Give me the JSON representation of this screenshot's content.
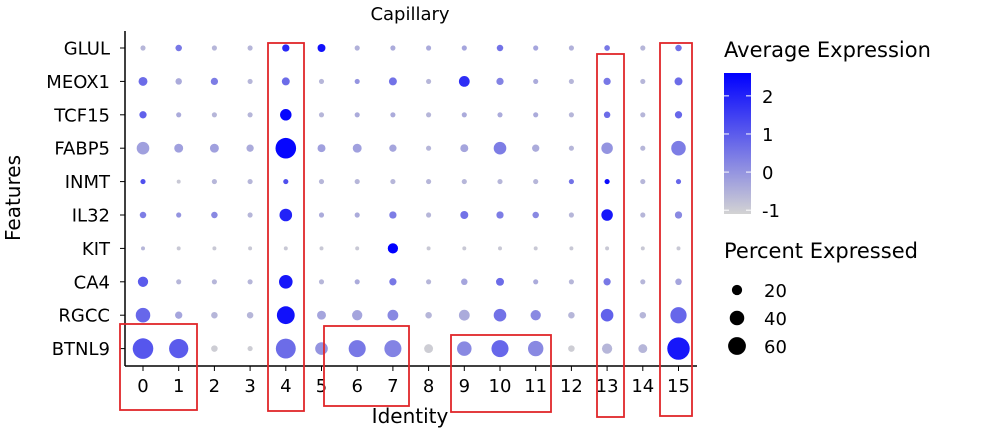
{
  "chart_data": {
    "type": "dotplot",
    "title": "Capillary",
    "xlabel": "Identity",
    "ylabel": "Features",
    "categories": [
      "0",
      "1",
      "2",
      "3",
      "4",
      "5",
      "6",
      "7",
      "8",
      "9",
      "10",
      "11",
      "12",
      "13",
      "14",
      "15"
    ],
    "features": [
      "GLUL",
      "MEOX1",
      "TCF15",
      "FABP5",
      "INMT",
      "IL32",
      "KIT",
      "CA4",
      "RGCC",
      "BTNL9"
    ],
    "avg_expression": [
      [
        -0.6,
        0.5,
        -0.6,
        -0.6,
        1.9,
        2.3,
        -0.5,
        -0.4,
        -0.4,
        -0.3,
        0.6,
        -0.3,
        -0.5,
        0.5,
        -0.6,
        0.6
      ],
      [
        0.7,
        -0.4,
        0.4,
        -0.6,
        0.7,
        -0.6,
        0.0,
        0.6,
        -0.6,
        1.8,
        0.3,
        -0.4,
        -0.6,
        0.5,
        -0.6,
        0.7
      ],
      [
        0.9,
        -0.4,
        -0.6,
        -0.6,
        2.5,
        -0.6,
        -0.4,
        -0.4,
        -0.6,
        -0.4,
        -0.4,
        -0.4,
        -0.6,
        0.7,
        -0.6,
        0.8
      ],
      [
        -0.2,
        -0.2,
        -0.2,
        -0.4,
        2.5,
        -0.2,
        -0.2,
        -0.3,
        -0.6,
        -0.3,
        0.4,
        -0.4,
        -0.6,
        0.0,
        -0.6,
        0.4
      ],
      [
        1.2,
        -0.9,
        -0.6,
        -0.6,
        1.2,
        -0.6,
        -0.6,
        -0.6,
        -0.6,
        -0.6,
        -0.6,
        -0.6,
        0.6,
        2.4,
        -0.6,
        0.8
      ],
      [
        0.4,
        0.0,
        0.2,
        -0.6,
        2.0,
        -0.4,
        -0.4,
        0.4,
        -0.6,
        0.6,
        0.4,
        0.2,
        -0.6,
        2.2,
        -0.6,
        0.2
      ],
      [
        -0.6,
        -0.9,
        -0.9,
        -0.9,
        -0.9,
        -0.9,
        -0.9,
        2.6,
        -0.9,
        -0.9,
        -0.9,
        -0.9,
        -0.9,
        -0.9,
        -0.9,
        -0.9
      ],
      [
        1.0,
        -0.6,
        -0.6,
        -0.6,
        2.2,
        -0.6,
        -0.4,
        0.5,
        -0.6,
        -0.3,
        0.7,
        -0.4,
        -0.6,
        0.5,
        -0.6,
        -0.3
      ],
      [
        0.8,
        -0.3,
        -0.6,
        -0.6,
        2.3,
        -0.3,
        -0.3,
        0.2,
        -0.6,
        -0.4,
        0.6,
        0.2,
        -0.6,
        0.9,
        -0.6,
        0.8
      ],
      [
        1.1,
        1.0,
        -1.0,
        -1.0,
        0.7,
        0.0,
        0.5,
        0.3,
        -1.0,
        0.2,
        0.8,
        0.2,
        -1.0,
        -0.6,
        -0.6,
        2.2
      ]
    ],
    "pct_expressed": [
      [
        5,
        8,
        5,
        5,
        10,
        12,
        5,
        5,
        5,
        5,
        8,
        5,
        5,
        6,
        5,
        8
      ],
      [
        15,
        8,
        10,
        5,
        12,
        5,
        5,
        12,
        5,
        22,
        10,
        5,
        5,
        10,
        5,
        12
      ],
      [
        10,
        5,
        5,
        5,
        25,
        5,
        5,
        5,
        5,
        5,
        5,
        5,
        5,
        8,
        5,
        10
      ],
      [
        30,
        15,
        15,
        10,
        80,
        12,
        15,
        10,
        5,
        12,
        30,
        10,
        5,
        25,
        5,
        40
      ],
      [
        5,
        3,
        5,
        5,
        5,
        5,
        5,
        5,
        5,
        5,
        5,
        5,
        5,
        5,
        5,
        5
      ],
      [
        8,
        5,
        8,
        5,
        30,
        5,
        5,
        10,
        5,
        12,
        10,
        8,
        5,
        25,
        5,
        10
      ],
      [
        3,
        3,
        3,
        3,
        3,
        3,
        3,
        20,
        3,
        3,
        3,
        3,
        3,
        3,
        3,
        3
      ],
      [
        20,
        5,
        5,
        5,
        35,
        5,
        5,
        10,
        5,
        8,
        12,
        5,
        5,
        10,
        5,
        8
      ],
      [
        40,
        10,
        8,
        8,
        60,
        15,
        20,
        22,
        8,
        22,
        30,
        20,
        8,
        30,
        8,
        50
      ],
      [
        80,
        70,
        8,
        5,
        75,
        30,
        55,
        55,
        15,
        40,
        55,
        45,
        8,
        20,
        15,
        95
      ]
    ],
    "color_scale": {
      "low": "#d3d3d3",
      "high": "#0000ff",
      "limits": [
        -1.1,
        2.6
      ]
    },
    "color_legend": {
      "title": "Average Expression",
      "breaks": [
        "2",
        "1",
        "0",
        "-1"
      ]
    },
    "size_legend": {
      "title": "Percent Expressed",
      "breaks": [
        "20",
        "40",
        "60"
      ]
    },
    "highlight_groups": [
      {
        "name": "group-0-1",
        "from": "0",
        "to": "1",
        "span": "bottom"
      },
      {
        "name": "group-4",
        "from": "4",
        "to": "4",
        "span": "full"
      },
      {
        "name": "group-6-7",
        "from": "5",
        "to": "7",
        "span": "bottom"
      },
      {
        "name": "group-9-11",
        "from": "9",
        "to": "11",
        "span": "bottom"
      },
      {
        "name": "group-13",
        "from": "13",
        "to": "13",
        "span": "full"
      },
      {
        "name": "group-15",
        "from": "15",
        "to": "15",
        "span": "full"
      }
    ],
    "highlight_color": "#e0262a"
  }
}
